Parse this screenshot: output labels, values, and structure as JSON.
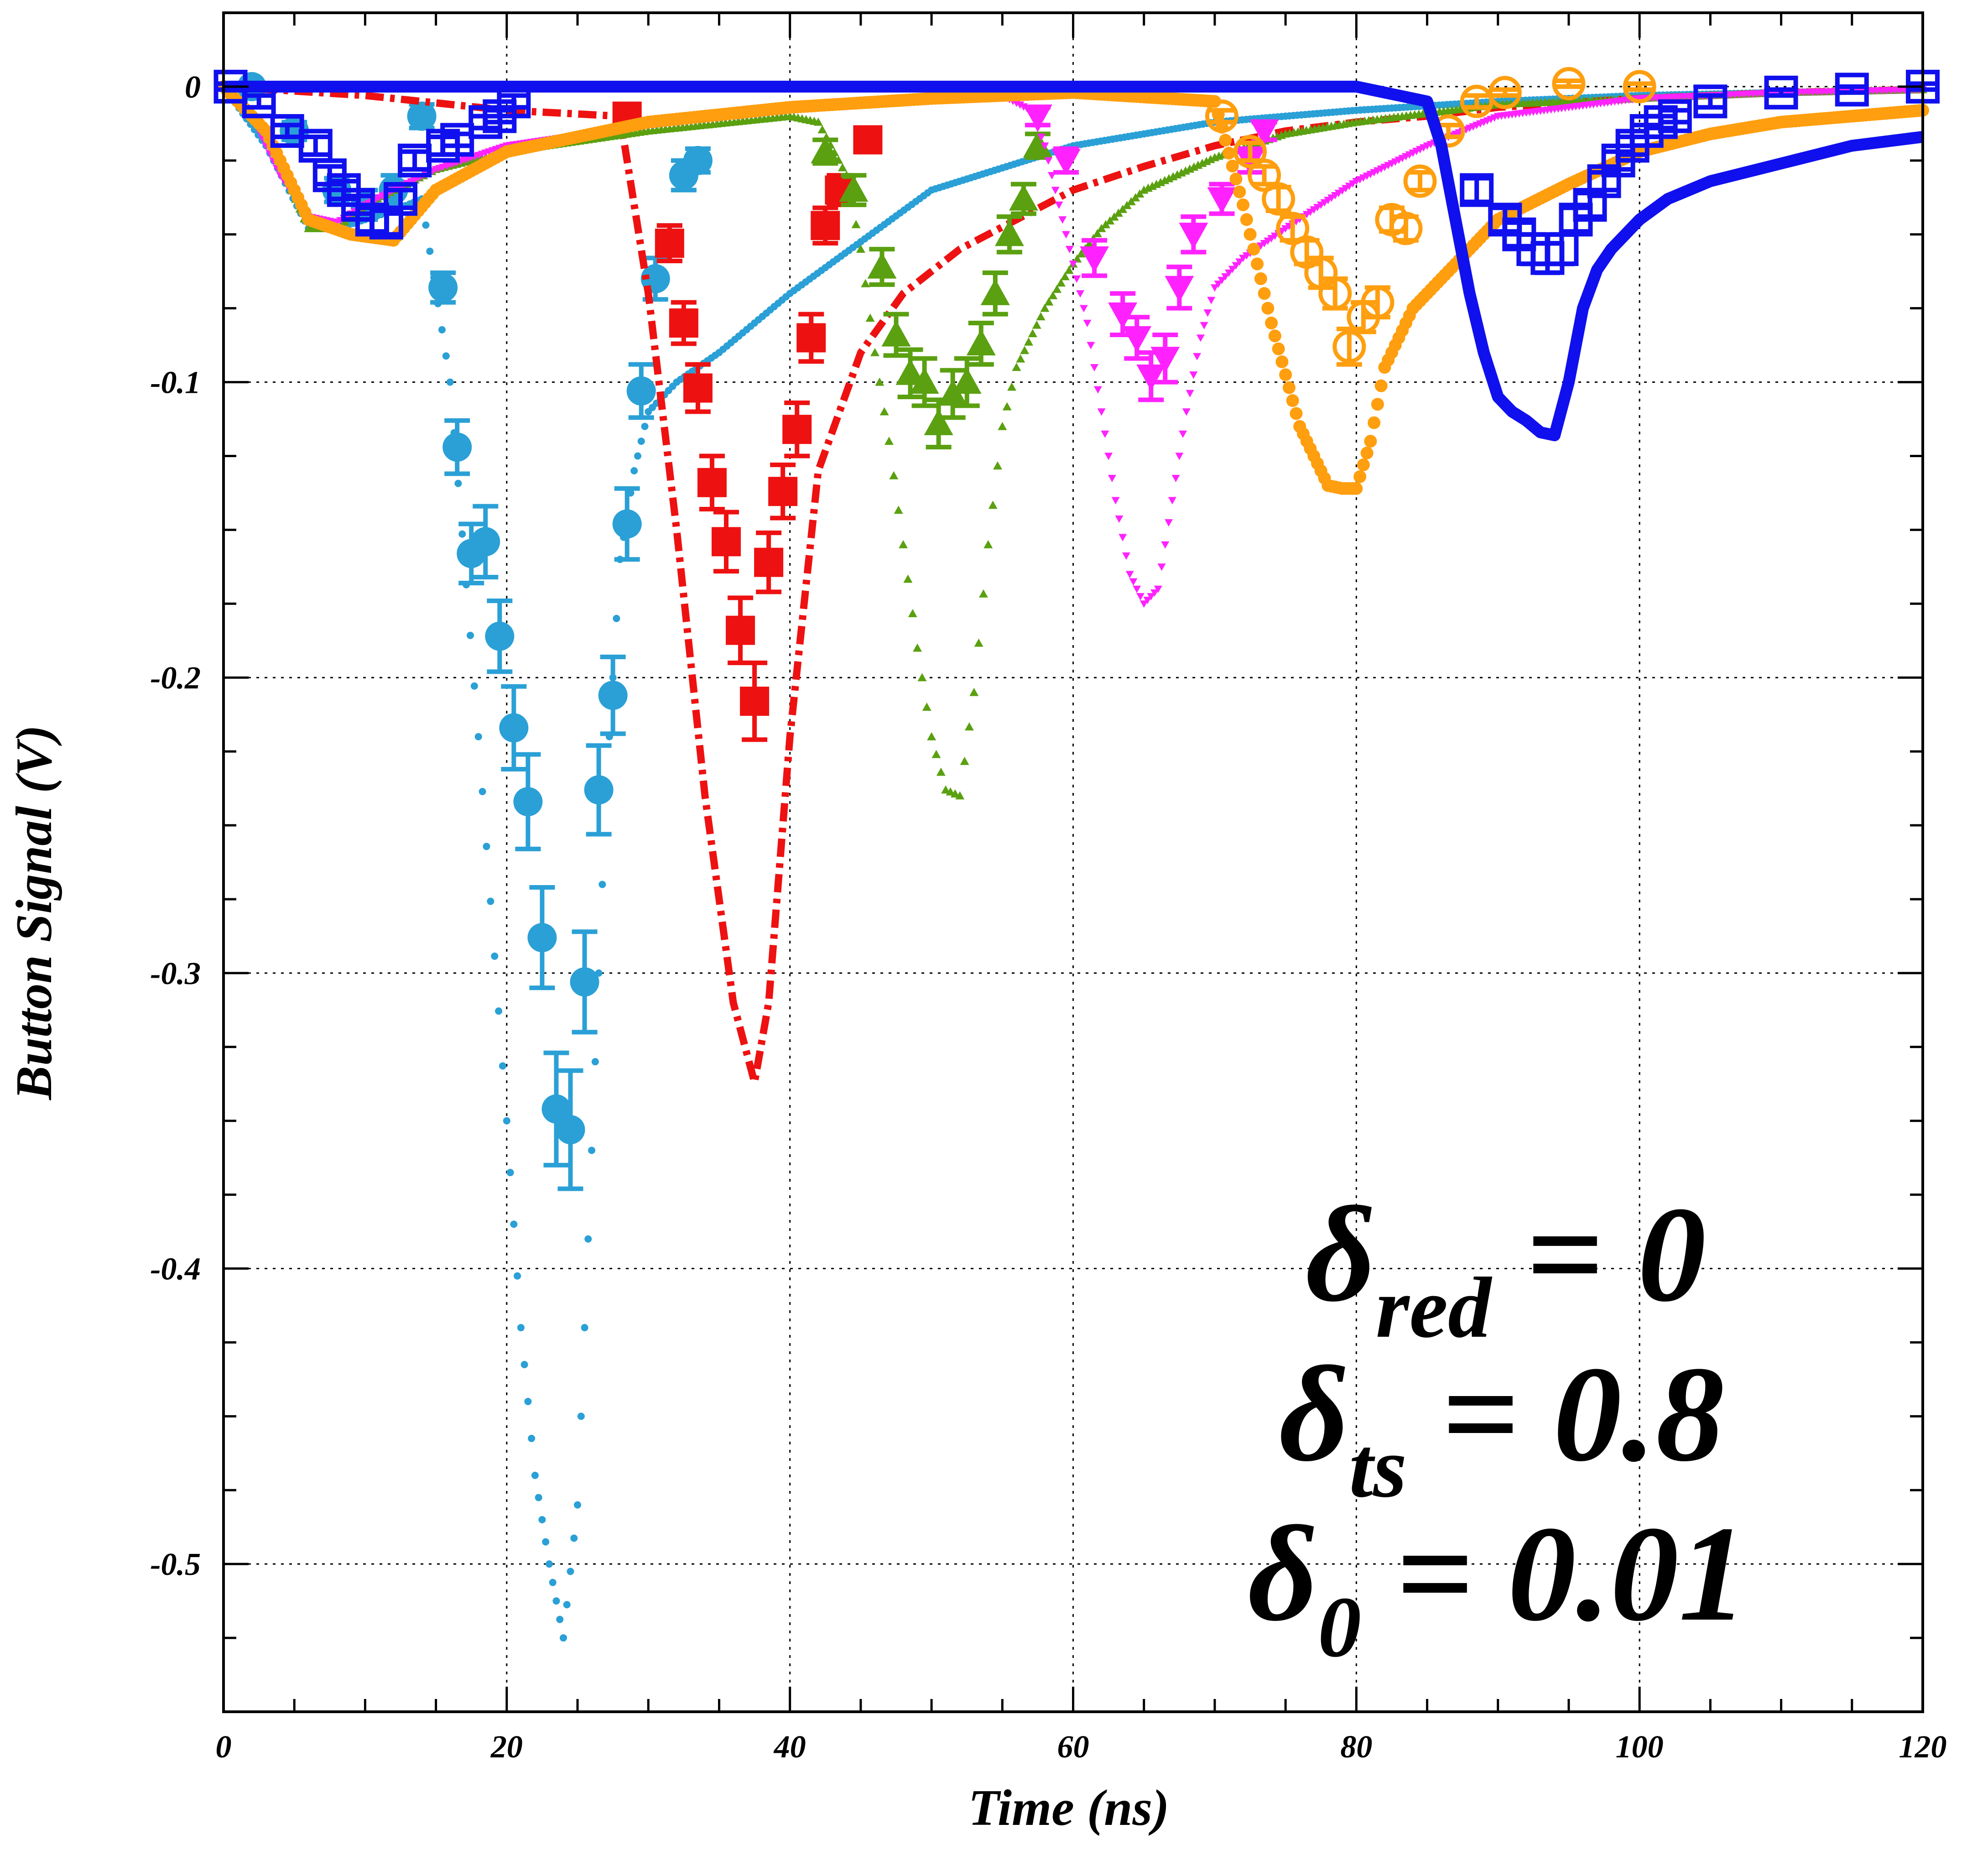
{
  "chart_data": {
    "type": "line",
    "xlabel": "Time (ns)",
    "ylabel": "Button Signal (V)",
    "xlim": [
      0,
      120
    ],
    "ylim": [
      -0.55,
      0.025
    ],
    "x_ticks": [
      0,
      20,
      40,
      60,
      80,
      100,
      120
    ],
    "y_ticks": [
      0,
      -0.1,
      -0.2,
      -0.3,
      -0.4,
      -0.5
    ],
    "x_tick_labels": [
      "0",
      "20",
      "40",
      "60",
      "80",
      "100",
      "120"
    ],
    "y_tick_labels": [
      "0",
      "-0.1",
      "-0.2",
      "-0.3",
      "-0.4",
      "-0.5"
    ],
    "grid": true,
    "annotations": [
      {
        "symbol": "δ",
        "sub": "red",
        "text": " = 0"
      },
      {
        "symbol": "δ",
        "sub": "ts",
        "text": " = 0.8"
      },
      {
        "symbol": "δ",
        "sub": "0",
        "text": " = 0.01"
      }
    ],
    "series": [
      {
        "kind": "simulation",
        "color": "#2aa0d6",
        "style": "dotted",
        "x": [
          0,
          3,
          6,
          8,
          10,
          12,
          14,
          16,
          18,
          20,
          21,
          22,
          23,
          24,
          25,
          26,
          27,
          28,
          29,
          30,
          32,
          35,
          40,
          50,
          60,
          70,
          80,
          90,
          100,
          110,
          120
        ],
        "y": [
          0,
          -0.02,
          -0.048,
          -0.048,
          -0.045,
          -0.042,
          -0.038,
          -0.1,
          -0.22,
          -0.35,
          -0.42,
          -0.47,
          -0.5,
          -0.525,
          -0.48,
          -0.36,
          -0.24,
          -0.16,
          -0.13,
          -0.11,
          -0.1,
          -0.09,
          -0.07,
          -0.035,
          -0.02,
          -0.012,
          -0.008,
          -0.005,
          -0.003,
          -0.002,
          -0.001
        ]
      },
      {
        "kind": "measurement",
        "color": "#2aa0d6",
        "marker": "circle",
        "x": [
          2,
          5,
          8,
          10,
          12,
          14,
          15.5,
          16.5,
          17.5,
          18.5,
          19.5,
          20.5,
          21.5,
          22.5,
          23.5,
          24.5,
          25.5,
          26.5,
          27.5,
          28.5,
          29.5,
          30.5,
          31.5,
          32.5,
          33.5
        ],
        "y": [
          0,
          -0.015,
          -0.035,
          -0.04,
          -0.035,
          -0.01,
          -0.068,
          -0.122,
          -0.158,
          -0.154,
          -0.186,
          -0.217,
          -0.242,
          -0.288,
          -0.346,
          -0.353,
          -0.303,
          -0.238,
          -0.206,
          -0.148,
          -0.103,
          -0.065,
          -0.053,
          -0.03,
          -0.025
        ],
        "err": [
          0,
          0.003,
          0.004,
          0.005,
          0.005,
          0.004,
          0.005,
          0.009,
          0.01,
          0.012,
          0.012,
          0.014,
          0.016,
          0.017,
          0.019,
          0.02,
          0.017,
          0.015,
          0.013,
          0.012,
          0.009,
          0.007,
          0.006,
          0.005,
          0.004
        ]
      },
      {
        "kind": "simulation",
        "color": "#ee1111",
        "style": "dash-dot",
        "x": [
          0,
          10,
          20,
          28,
          30,
          32,
          34,
          36,
          37.5,
          38.5,
          40,
          42,
          45,
          48,
          52,
          56,
          60,
          65,
          70,
          75,
          80,
          85,
          90,
          100,
          110,
          120
        ],
        "y": [
          0,
          -0.003,
          -0.008,
          -0.01,
          -0.07,
          -0.15,
          -0.24,
          -0.31,
          -0.337,
          -0.31,
          -0.22,
          -0.13,
          -0.09,
          -0.07,
          -0.055,
          -0.045,
          -0.035,
          -0.027,
          -0.02,
          -0.015,
          -0.012,
          -0.01,
          -0.007,
          -0.004,
          -0.002,
          -0.001
        ]
      },
      {
        "kind": "measurement",
        "color": "#ee1111",
        "marker": "square",
        "x": [
          28.5,
          31.5,
          32.5,
          33.5,
          34.5,
          35.5,
          36.5,
          37.5,
          38.5,
          39.5,
          40.5,
          41.5,
          42.5,
          43.5,
          45.5
        ],
        "y": [
          -0.01,
          -0.053,
          -0.08,
          -0.102,
          -0.134,
          -0.154,
          -0.184,
          -0.208,
          -0.161,
          -0.137,
          -0.116,
          -0.085,
          -0.047,
          -0.035,
          -0.018
        ],
        "err": [
          0.002,
          0.006,
          0.007,
          0.008,
          0.009,
          0.01,
          0.011,
          0.013,
          0.01,
          0.009,
          0.009,
          0.008,
          0.006,
          0.005,
          0.004
        ]
      },
      {
        "kind": "simulation",
        "color": "#5aa010",
        "style": "triangles",
        "x": [
          0,
          3,
          6,
          8,
          10,
          15,
          20,
          30,
          40,
          42,
          44,
          45,
          46,
          47,
          48,
          49,
          50,
          51,
          52,
          53,
          54,
          55,
          56,
          58,
          60,
          62,
          65,
          70,
          75,
          80,
          85,
          90,
          100,
          110,
          120
        ],
        "y": [
          0,
          -0.015,
          -0.048,
          -0.048,
          -0.04,
          -0.028,
          -0.022,
          -0.015,
          -0.01,
          -0.012,
          -0.03,
          -0.055,
          -0.09,
          -0.12,
          -0.155,
          -0.19,
          -0.22,
          -0.238,
          -0.24,
          -0.205,
          -0.155,
          -0.115,
          -0.095,
          -0.075,
          -0.06,
          -0.048,
          -0.035,
          -0.024,
          -0.016,
          -0.012,
          -0.009,
          -0.006,
          -0.004,
          -0.002,
          -0.001
        ]
      },
      {
        "kind": "measurement",
        "color": "#5aa010",
        "marker": "triangle-up",
        "x": [
          42.5,
          44.5,
          46.5,
          47.5,
          48.5,
          49.5,
          50.5,
          51.5,
          52.5,
          53.5,
          54.5,
          55.5,
          56.5,
          57.5
        ],
        "y": [
          -0.022,
          -0.035,
          -0.061,
          -0.084,
          -0.097,
          -0.1,
          -0.114,
          -0.104,
          -0.1,
          -0.087,
          -0.07,
          -0.05,
          -0.038,
          -0.02
        ],
        "err": [
          0.004,
          0.005,
          0.006,
          0.007,
          0.008,
          0.008,
          0.008,
          0.008,
          0.008,
          0.007,
          0.007,
          0.006,
          0.005,
          0.004
        ]
      },
      {
        "kind": "simulation",
        "color": "#ff22ff",
        "style": "small-triangles",
        "x": [
          0,
          2,
          4,
          6,
          8,
          10,
          12,
          15,
          20,
          30,
          40,
          50,
          55,
          57,
          58,
          59,
          60,
          61,
          62,
          63,
          64,
          65,
          66,
          67,
          68,
          69,
          70,
          72,
          75,
          80,
          85,
          90,
          100,
          110,
          120
        ],
        "y": [
          0,
          -0.01,
          -0.03,
          -0.044,
          -0.046,
          -0.04,
          -0.035,
          -0.028,
          -0.02,
          -0.013,
          -0.008,
          -0.004,
          -0.003,
          -0.008,
          -0.02,
          -0.04,
          -0.06,
          -0.08,
          -0.11,
          -0.14,
          -0.165,
          -0.175,
          -0.17,
          -0.14,
          -0.11,
          -0.085,
          -0.068,
          -0.058,
          -0.048,
          -0.032,
          -0.02,
          -0.01,
          -0.004,
          -0.002,
          -0.001
        ]
      },
      {
        "kind": "measurement",
        "color": "#ff22ff",
        "marker": "triangle-down",
        "x": [
          57.5,
          59.5,
          61.5,
          63.5,
          64.5,
          65.5,
          66.5,
          67.5,
          68.5,
          70.5,
          72.5,
          73.5
        ],
        "y": [
          -0.01,
          -0.025,
          -0.058,
          -0.077,
          -0.085,
          -0.098,
          -0.092,
          -0.068,
          -0.05,
          -0.038,
          -0.025,
          -0.015
        ],
        "err": [
          0.003,
          0.004,
          0.006,
          0.007,
          0.007,
          0.008,
          0.008,
          0.007,
          0.006,
          0.005,
          0.004,
          0.003
        ]
      },
      {
        "kind": "simulation",
        "color": "#ff9e0e",
        "style": "thick-dots",
        "x": [
          0,
          3,
          6,
          9,
          12,
          15,
          20,
          30,
          40,
          50,
          60,
          70,
          72,
          74,
          76,
          78,
          79,
          80,
          81,
          82,
          84,
          86,
          88,
          90,
          95,
          100,
          105,
          110,
          115,
          120
        ],
        "y": [
          0,
          -0.015,
          -0.045,
          -0.05,
          -0.052,
          -0.035,
          -0.022,
          -0.012,
          -0.007,
          -0.004,
          -0.002,
          -0.005,
          -0.04,
          -0.08,
          -0.115,
          -0.135,
          -0.136,
          -0.136,
          -0.12,
          -0.095,
          -0.075,
          -0.065,
          -0.055,
          -0.045,
          -0.033,
          -0.022,
          -0.016,
          -0.012,
          -0.01,
          -0.008
        ]
      },
      {
        "kind": "measurement",
        "color": "#ff9e0e",
        "marker": "open-circle",
        "x": [
          70.5,
          72.5,
          73.5,
          74.5,
          75.5,
          76.5,
          77.5,
          78.5,
          79.5,
          80.5,
          81.5,
          82.5,
          83.5,
          84.5,
          86.5,
          88.5,
          90.5,
          95,
          100
        ],
        "y": [
          -0.01,
          -0.022,
          -0.03,
          -0.038,
          -0.048,
          -0.056,
          -0.063,
          -0.07,
          -0.088,
          -0.078,
          -0.073,
          -0.045,
          -0.048,
          -0.032,
          -0.015,
          -0.005,
          -0.002,
          0.001,
          0
        ],
        "err": [
          0.002,
          0.003,
          0.003,
          0.004,
          0.004,
          0.004,
          0.005,
          0.005,
          0.006,
          0.005,
          0.005,
          0.004,
          0.004,
          0.003,
          0.002,
          0.002,
          0.001,
          0.001,
          0.001
        ]
      },
      {
        "kind": "simulation",
        "color": "#1010ee",
        "style": "thick-solid",
        "x": [
          0,
          20,
          40,
          60,
          80,
          85,
          86,
          87,
          88,
          89,
          90,
          91,
          92,
          93,
          94,
          95,
          96,
          97,
          98,
          100,
          102,
          105,
          110,
          115,
          120
        ],
        "y": [
          0,
          0,
          0,
          0,
          0,
          -0.005,
          -0.02,
          -0.045,
          -0.07,
          -0.09,
          -0.105,
          -0.11,
          -0.113,
          -0.117,
          -0.118,
          -0.1,
          -0.075,
          -0.062,
          -0.055,
          -0.045,
          -0.038,
          -0.032,
          -0.026,
          -0.02,
          -0.017
        ]
      },
      {
        "kind": "measurement",
        "color": "#1010ee",
        "marker": "open-square",
        "x": [
          0.5,
          2.5,
          4.5,
          6.5,
          7.5,
          8.5,
          9.5,
          10.5,
          11.5,
          12.5,
          13.5,
          15.5,
          16.5,
          18.5,
          19.5,
          20.5,
          88.5,
          90.5,
          91.5,
          92.5,
          93.5,
          94.5,
          95.5,
          96.5,
          97.5,
          98.5,
          99.5,
          100.5,
          101.5,
          102.5,
          105,
          110,
          115,
          120
        ],
        "y": [
          0,
          -0.005,
          -0.015,
          -0.02,
          -0.03,
          -0.035,
          -0.04,
          -0.045,
          -0.046,
          -0.038,
          -0.025,
          -0.02,
          -0.018,
          -0.012,
          -0.01,
          -0.005,
          -0.035,
          -0.045,
          -0.05,
          -0.055,
          -0.058,
          -0.055,
          -0.045,
          -0.04,
          -0.032,
          -0.025,
          -0.02,
          -0.015,
          -0.012,
          -0.01,
          -0.005,
          -0.002,
          -0.001,
          0
        ],
        "err": [
          0.001,
          0.002,
          0.002,
          0.003,
          0.003,
          0.003,
          0.003,
          0.004,
          0.004,
          0.003,
          0.003,
          0.003,
          0.002,
          0.002,
          0.002,
          0.002,
          0.004,
          0.004,
          0.004,
          0.005,
          0.005,
          0.005,
          0.004,
          0.004,
          0.003,
          0.003,
          0.003,
          0.002,
          0.002,
          0.002,
          0.002,
          0.001,
          0.001,
          0.001
        ]
      }
    ]
  }
}
